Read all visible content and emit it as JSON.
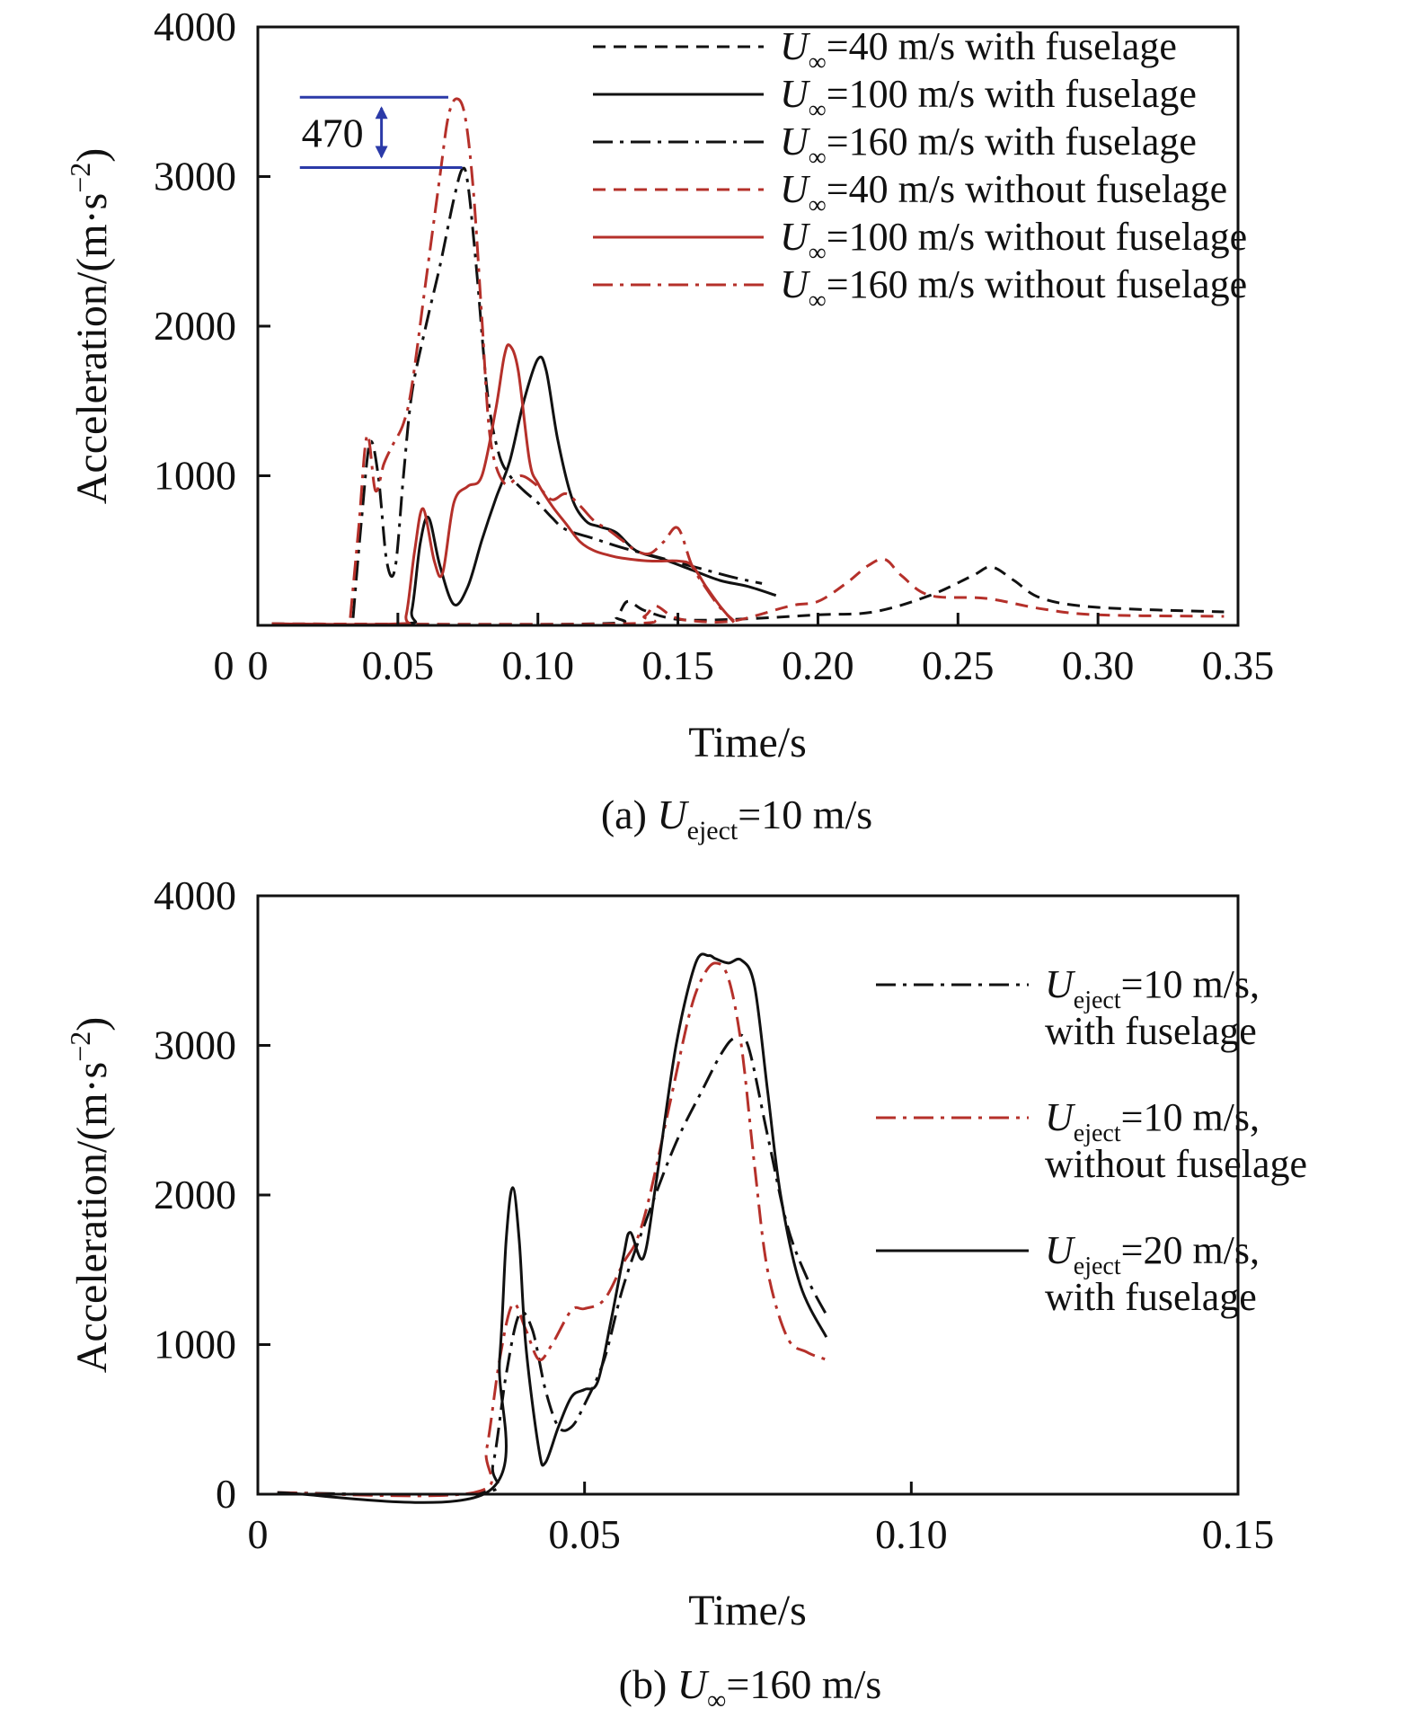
{
  "colors": {
    "black": "#111111",
    "red": "#b5302a",
    "annotation": "#2b3aa8"
  },
  "chart_data": [
    {
      "type": "line",
      "caption": {
        "prefix": "(a) ",
        "var": "U",
        "sub": "eject",
        "rest": "=10 m/s"
      },
      "xlabel": "Time/s",
      "ylabel": "Acceleration/(m·s",
      "ylabel_sup": "−2",
      "ylabel_end": ")",
      "xlim": [
        0,
        0.35
      ],
      "ylim": [
        0,
        4000
      ],
      "xticks": [
        {
          "v": 0,
          "label": "0"
        },
        {
          "v": 0.05,
          "label": "0.05"
        },
        {
          "v": 0.1,
          "label": "0.10"
        },
        {
          "v": 0.15,
          "label": "0.15"
        },
        {
          "v": 0.2,
          "label": "0.20"
        },
        {
          "v": 0.25,
          "label": "0.25"
        },
        {
          "v": 0.3,
          "label": "0.30"
        },
        {
          "v": 0.35,
          "label": "0.35"
        }
      ],
      "yticks": [
        {
          "v": 1000,
          "label": "1000"
        },
        {
          "v": 2000,
          "label": "2000"
        },
        {
          "v": 3000,
          "label": "3000"
        },
        {
          "v": 4000,
          "label": "4000"
        }
      ],
      "annotation": {
        "label": "470",
        "y_top": 3530,
        "y_bottom": 3060,
        "x_start": 0.015,
        "x_end_top": 0.068,
        "x_end_bottom": 0.073
      },
      "series": [
        {
          "name": "=40 m/s with fuselage",
          "var": "U",
          "sub": "∞",
          "color": "black",
          "dash": "dash",
          "x": [
            0.005,
            0.12,
            0.128,
            0.132,
            0.138,
            0.15,
            0.17,
            0.2,
            0.22,
            0.24,
            0.255,
            0.262,
            0.27,
            0.28,
            0.3,
            0.345
          ],
          "y": [
            10,
            10,
            60,
            160,
            100,
            40,
            40,
            70,
            90,
            200,
            330,
            390,
            300,
            180,
            120,
            90
          ]
        },
        {
          "name": "=100 m/s with fuselage",
          "var": "U",
          "sub": "∞",
          "color": "black",
          "dash": "solid",
          "x": [
            0.005,
            0.052,
            0.055,
            0.058,
            0.061,
            0.065,
            0.07,
            0.075,
            0.08,
            0.085,
            0.09,
            0.095,
            0.1,
            0.103,
            0.107,
            0.112,
            0.117,
            0.122,
            0.128,
            0.135,
            0.145,
            0.155,
            0.165,
            0.175,
            0.185
          ],
          "y": [
            10,
            10,
            100,
            550,
            720,
            400,
            140,
            260,
            570,
            850,
            1100,
            1500,
            1780,
            1700,
            1250,
            860,
            700,
            660,
            620,
            500,
            440,
            370,
            300,
            260,
            200
          ]
        },
        {
          "name": "=160 m/s with fuselage",
          "var": "U",
          "sub": "∞",
          "color": "black",
          "dash": "dashdot",
          "x": [
            0.034,
            0.037,
            0.04,
            0.043,
            0.046,
            0.049,
            0.052,
            0.055,
            0.06,
            0.065,
            0.07,
            0.073,
            0.075,
            0.078,
            0.082,
            0.086,
            0.09,
            0.095,
            0.1,
            0.105,
            0.11,
            0.12,
            0.13,
            0.14,
            0.15,
            0.16,
            0.17,
            0.18
          ],
          "y": [
            50,
            700,
            1220,
            1000,
            430,
            380,
            1000,
            1550,
            2000,
            2400,
            2850,
            3050,
            2950,
            2400,
            1550,
            1150,
            1000,
            900,
            820,
            720,
            640,
            580,
            520,
            470,
            420,
            370,
            320,
            280
          ]
        },
        {
          "name": "=40 m/s without fuselage",
          "var": "U",
          "sub": "∞",
          "color": "red",
          "dash": "dash",
          "x": [
            0.005,
            0.13,
            0.138,
            0.142,
            0.148,
            0.155,
            0.17,
            0.19,
            0.2,
            0.21,
            0.218,
            0.224,
            0.23,
            0.24,
            0.26,
            0.28,
            0.3,
            0.345
          ],
          "y": [
            10,
            10,
            60,
            130,
            60,
            30,
            30,
            130,
            160,
            280,
            400,
            440,
            330,
            200,
            180,
            110,
            70,
            60
          ]
        },
        {
          "name": "=100 m/s without fuselage",
          "var": "U",
          "sub": "∞",
          "color": "red",
          "dash": "solid",
          "x": [
            0.005,
            0.05,
            0.053,
            0.056,
            0.059,
            0.063,
            0.066,
            0.07,
            0.075,
            0.08,
            0.085,
            0.088,
            0.09,
            0.093,
            0.097,
            0.1,
            0.105,
            0.11,
            0.115,
            0.12,
            0.125,
            0.13,
            0.14,
            0.15,
            0.155,
            0.16,
            0.165,
            0.17
          ],
          "y": [
            10,
            10,
            70,
            500,
            780,
            430,
            350,
            820,
            930,
            1000,
            1450,
            1800,
            1870,
            1700,
            1100,
            950,
            800,
            680,
            560,
            500,
            470,
            450,
            430,
            430,
            400,
            260,
            130,
            20
          ]
        },
        {
          "name": "=160 m/s without fuselage",
          "var": "U",
          "sub": "∞",
          "color": "red",
          "dash": "dashdot",
          "x": [
            0.033,
            0.036,
            0.039,
            0.042,
            0.045,
            0.048,
            0.052,
            0.055,
            0.06,
            0.065,
            0.068,
            0.071,
            0.074,
            0.077,
            0.08,
            0.083,
            0.088,
            0.094,
            0.1,
            0.105,
            0.11,
            0.115,
            0.12,
            0.125,
            0.13,
            0.135,
            0.14,
            0.145,
            0.15,
            0.155,
            0.16,
            0.165,
            0.17
          ],
          "y": [
            50,
            650,
            1270,
            900,
            1080,
            1200,
            1350,
            1600,
            2300,
            3000,
            3400,
            3520,
            3400,
            2900,
            2050,
            1250,
            950,
            1000,
            930,
            840,
            880,
            800,
            700,
            640,
            570,
            500,
            480,
            560,
            650,
            400,
            250,
            120,
            30
          ]
        }
      ]
    },
    {
      "type": "line",
      "caption": {
        "prefix": "(b) ",
        "var": "U",
        "sub": "∞",
        "rest": "=160 m/s"
      },
      "xlabel": "Time/s",
      "ylabel": "Acceleration/(m·s",
      "ylabel_sup": "−2",
      "ylabel_end": ")",
      "xlim": [
        0,
        0.15
      ],
      "ylim": [
        0,
        4000
      ],
      "xticks": [
        {
          "v": 0,
          "label": "0"
        },
        {
          "v": 0.05,
          "label": "0.05"
        },
        {
          "v": 0.1,
          "label": "0.10"
        },
        {
          "v": 0.15,
          "label": "0.15"
        }
      ],
      "yticks": [
        {
          "v": 0,
          "label": "0"
        },
        {
          "v": 1000,
          "label": "1000"
        },
        {
          "v": 2000,
          "label": "2000"
        },
        {
          "v": 3000,
          "label": "3000"
        },
        {
          "v": 4000,
          "label": "4000"
        }
      ],
      "series": [
        {
          "line1": "=10 m/s,",
          "line2": "with fuselage",
          "var": "U",
          "sub": "eject",
          "color": "black",
          "dash": "dashdot",
          "x": [
            0.003,
            0.034,
            0.036,
            0.038,
            0.04,
            0.042,
            0.044,
            0.046,
            0.048,
            0.05,
            0.053,
            0.056,
            0.06,
            0.064,
            0.068,
            0.071,
            0.073,
            0.075,
            0.078,
            0.081,
            0.084,
            0.087
          ],
          "y": [
            10,
            10,
            200,
            800,
            1200,
            1100,
            700,
            450,
            450,
            600,
            900,
            1400,
            1900,
            2350,
            2700,
            2950,
            3050,
            3000,
            2400,
            1800,
            1450,
            1200
          ]
        },
        {
          "line1": "=10 m/s,",
          "line2": "without fuselage",
          "var": "U",
          "sub": "eject",
          "color": "red",
          "dash": "dashdot",
          "x": [
            0.003,
            0.033,
            0.035,
            0.037,
            0.039,
            0.041,
            0.043,
            0.045,
            0.048,
            0.05,
            0.053,
            0.056,
            0.058,
            0.06,
            0.063,
            0.066,
            0.068,
            0.07,
            0.072,
            0.074,
            0.076,
            0.078,
            0.081,
            0.084,
            0.087
          ],
          "y": [
            10,
            10,
            300,
            900,
            1270,
            1100,
            900,
            1000,
            1230,
            1240,
            1300,
            1550,
            1700,
            2000,
            2600,
            3200,
            3450,
            3550,
            3450,
            3000,
            2200,
            1500,
            1050,
            950,
            900
          ]
        },
        {
          "line1": "=20 m/s,",
          "line2": "with fuselage",
          "var": "U",
          "sub": "eject",
          "color": "black",
          "dash": "solid",
          "x": [
            0.003,
            0.035,
            0.037,
            0.038,
            0.039,
            0.04,
            0.041,
            0.043,
            0.044,
            0.046,
            0.048,
            0.05,
            0.052,
            0.054,
            0.056,
            0.057,
            0.059,
            0.061,
            0.064,
            0.067,
            0.069,
            0.07,
            0.072,
            0.074,
            0.076,
            0.078,
            0.08,
            0.083,
            0.087
          ],
          "y": [
            10,
            10,
            900,
            1700,
            2050,
            1700,
            1000,
            300,
            210,
            450,
            650,
            700,
            750,
            1150,
            1600,
            1750,
            1580,
            2100,
            3000,
            3550,
            3600,
            3580,
            3550,
            3570,
            3400,
            2700,
            2000,
            1400,
            1050
          ]
        }
      ]
    }
  ]
}
